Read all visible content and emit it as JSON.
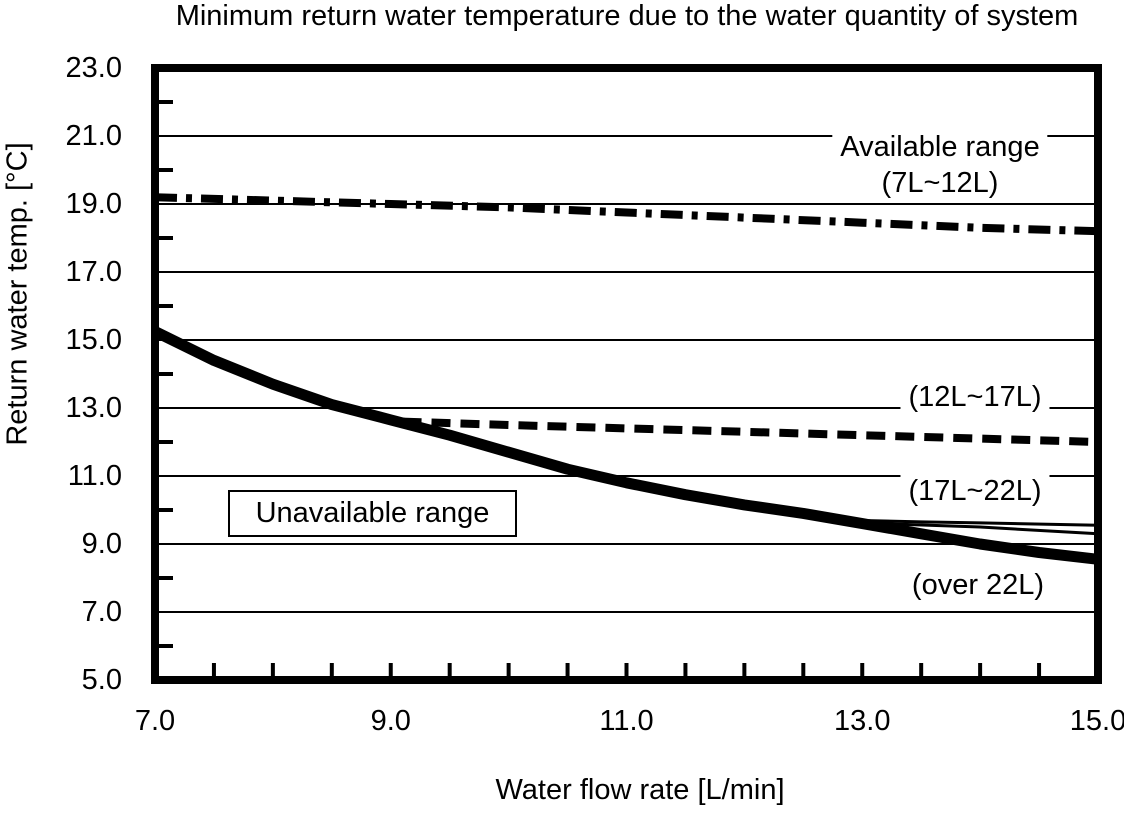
{
  "page": {
    "background": "#ffffff",
    "ink_color": "#000000"
  },
  "chart_data": {
    "type": "line",
    "title": "Minimum return water temperature due to the water quantity of system",
    "xlabel": "Water flow rate [L/min]",
    "ylabel": "Return water temp. [°C]",
    "xlim": [
      7.0,
      15.0
    ],
    "ylim": [
      5.0,
      23.0
    ],
    "grid": "horizontal",
    "legend": "none (labels drawn inside plot)",
    "line_color": "#000000",
    "x_ticks": [
      7.0,
      9.0,
      11.0,
      13.0,
      15.0
    ],
    "x_tick_labels": [
      "7.0",
      "9.0",
      "11.0",
      "13.0",
      "15.0"
    ],
    "x_minor_ticks": [
      7.5,
      8.0,
      8.5,
      9.0,
      9.5,
      10.0,
      10.5,
      11.0,
      11.5,
      12.0,
      12.5,
      13.0,
      13.5,
      14.0,
      14.5
    ],
    "y_ticks": [
      23.0,
      21.0,
      19.0,
      17.0,
      15.0,
      13.0,
      11.0,
      9.0,
      7.0,
      5.0
    ],
    "y_tick_labels": [
      "23.0",
      "21.0",
      "19.0",
      "17.0",
      "15.0",
      "13.0",
      "11.0",
      "9.0",
      "7.0",
      "5.0"
    ],
    "y_gridlines": [
      21.0,
      19.0,
      17.0,
      15.0,
      13.0,
      11.0,
      9.0,
      7.0
    ],
    "y_minor_ticks": [
      22.0,
      20.0,
      18.0,
      16.0,
      14.0,
      12.0,
      10.0,
      8.0,
      6.0
    ],
    "series": [
      {
        "name": "Available range (7L~12L)",
        "line_style": "dash-dot",
        "line_width": 8,
        "points": [
          [
            7.0,
            19.2
          ],
          [
            8.0,
            19.1
          ],
          [
            9.0,
            19.0
          ],
          [
            10.0,
            18.9
          ],
          [
            11.0,
            18.75
          ],
          [
            12.0,
            18.6
          ],
          [
            13.0,
            18.45
          ],
          [
            14.0,
            18.3
          ],
          [
            15.0,
            18.2
          ]
        ]
      },
      {
        "name": "(12L~17L)",
        "line_style": "dashed",
        "line_width": 8,
        "points": [
          [
            9.1,
            12.6
          ],
          [
            10.0,
            12.5
          ],
          [
            11.0,
            12.4
          ],
          [
            12.0,
            12.3
          ],
          [
            13.0,
            12.2
          ],
          [
            14.0,
            12.1
          ],
          [
            15.0,
            12.0
          ]
        ]
      },
      {
        "name": "(17L~22L)",
        "line_style": "solid",
        "line_width": 3,
        "points": [
          [
            12.9,
            9.7
          ],
          [
            13.5,
            9.65
          ],
          [
            14.0,
            9.62
          ],
          [
            15.0,
            9.55
          ]
        ]
      },
      {
        "name": "(17L~22L) lower thin line",
        "line_style": "solid",
        "line_width": 3,
        "points": [
          [
            13.0,
            9.62
          ],
          [
            14.0,
            9.5
          ],
          [
            15.0,
            9.3
          ]
        ]
      },
      {
        "name": "(over 22L)",
        "line_style": "solid",
        "line_width": 11,
        "points": [
          [
            7.0,
            15.25
          ],
          [
            7.5,
            14.4
          ],
          [
            8.0,
            13.7
          ],
          [
            8.5,
            13.1
          ],
          [
            9.0,
            12.65
          ],
          [
            9.5,
            12.2
          ],
          [
            10.0,
            11.7
          ],
          [
            10.5,
            11.2
          ],
          [
            11.0,
            10.8
          ],
          [
            11.5,
            10.45
          ],
          [
            12.0,
            10.15
          ],
          [
            12.5,
            9.9
          ],
          [
            13.0,
            9.6
          ],
          [
            13.5,
            9.3
          ],
          [
            14.0,
            9.0
          ],
          [
            14.5,
            8.75
          ],
          [
            15.0,
            8.55
          ]
        ]
      }
    ]
  },
  "annotations": {
    "available_range_line1": "Available range",
    "available_range_line2": "(7L~12L)",
    "range_12_17": "(12L~17L)",
    "range_17_22": "(17L~22L)",
    "over_22": "(over 22L)",
    "unavailable_range": "Unavailable range"
  }
}
